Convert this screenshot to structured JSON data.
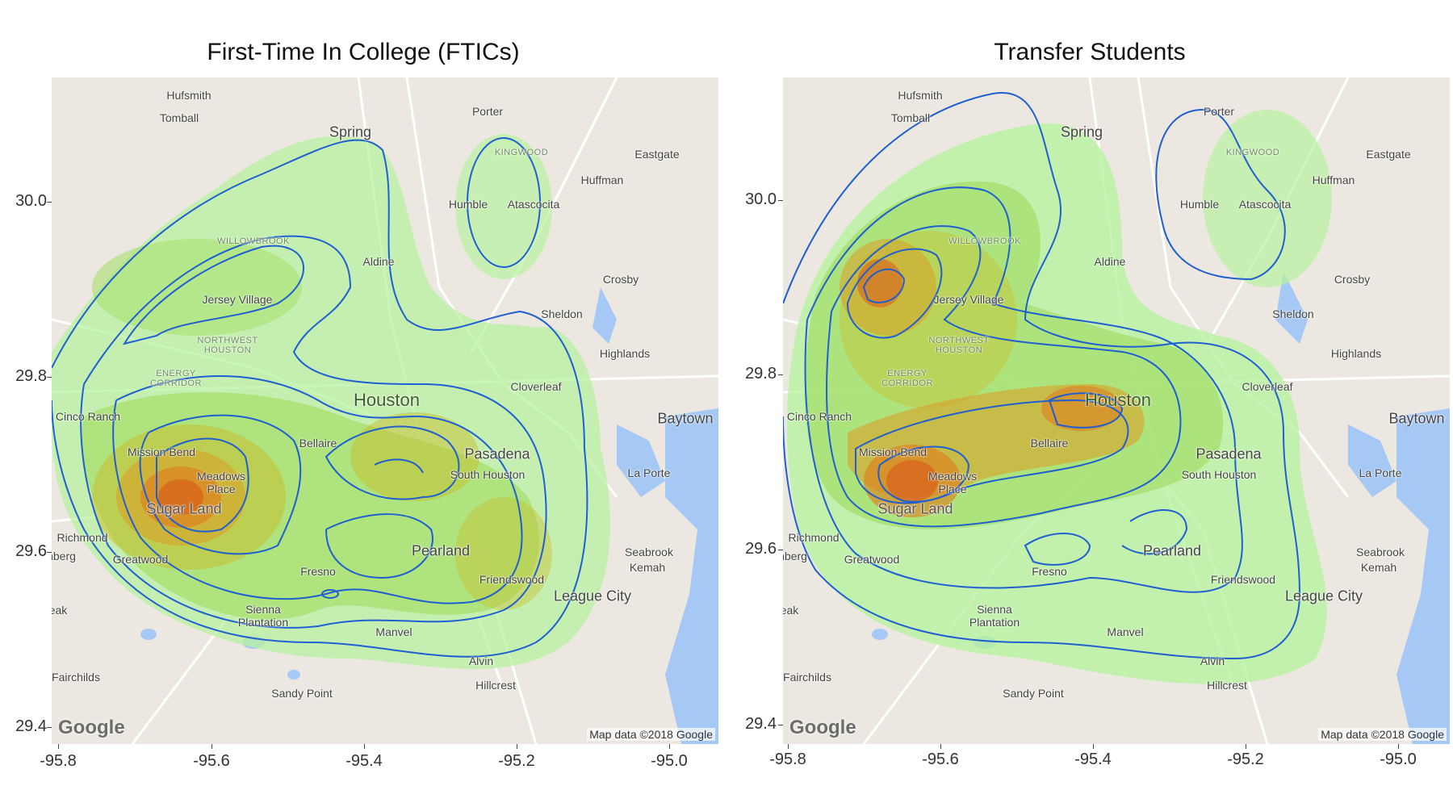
{
  "panels": [
    {
      "title": "First-Time In College (FTICs)"
    },
    {
      "title": "Transfer Students"
    }
  ],
  "axes": {
    "x_ticks": [
      "-95.8",
      "-95.6",
      "-95.4",
      "-95.2",
      "-95.0"
    ],
    "y_ticks": [
      "30.0",
      "29.8",
      "29.6",
      "29.4"
    ]
  },
  "map": {
    "google_logo": "Google",
    "attribution": "Map data ©2018 Google",
    "places": {
      "hufsmith": "Hufsmith",
      "tomball": "Tomball",
      "porter": "Porter",
      "spring": "Spring",
      "kingwood": "KINGWOOD",
      "eastgate": "Eastgate",
      "huffman": "Huffman",
      "humble": "Humble",
      "atascocita": "Atascocita",
      "willowbrook": "WILLOWBROOK",
      "aldine": "Aldine",
      "crosby": "Crosby",
      "jersey_village": "Jersey Village",
      "sheldon": "Sheldon",
      "northwest_houston": "NORTHWEST HOUSTON",
      "highlands": "Highlands",
      "energy_corridor": "ENERGY CORRIDOR",
      "cloverleaf": "Cloverleaf",
      "houston": "Houston",
      "cinco_ranch": "Cinco Ranch",
      "baytown": "Baytown",
      "bellaire": "Bellaire",
      "mission_bend": "Mission Bend",
      "pasadena": "Pasadena",
      "south_houston": "South Houston",
      "la_porte": "La Porte",
      "meadows_place": "Meadows Place",
      "sugar_land": "Sugar Land",
      "richmond": "Richmond",
      "rosenberg": "nberg",
      "pearland": "Pearland",
      "seabrook": "Seabrook",
      "kemah": "Kemah",
      "greatwood": "Greatwood",
      "fresno": "Fresno",
      "friendswood": "Friendswood",
      "league_city": "League City",
      "sienna": "Sienna Plantation",
      "manvel": "Manvel",
      "fairchilds": "Fairchilds",
      "alvin": "Alvin",
      "hillcrest": "Hillcrest",
      "sandy_point": "Sandy Point",
      "eak": "eak"
    }
  },
  "density": {
    "ftic_hotspots": [
      {
        "lon": -95.62,
        "lat": 29.68,
        "level": "high"
      },
      {
        "lon": -95.35,
        "lat": 29.72,
        "level": "medium"
      },
      {
        "lon": -95.22,
        "lat": 29.6,
        "level": "medium"
      },
      {
        "lon": -95.55,
        "lat": 29.9,
        "level": "low"
      }
    ],
    "transfer_hotspots": [
      {
        "lon": -95.63,
        "lat": 29.69,
        "level": "high"
      },
      {
        "lon": -95.38,
        "lat": 29.73,
        "level": "high"
      },
      {
        "lon": -95.68,
        "lat": 29.87,
        "level": "high"
      },
      {
        "lon": -95.55,
        "lat": 29.95,
        "level": "medium"
      }
    ]
  },
  "colors": {
    "contour": "#1f5fd0",
    "water": "#a5c8f5",
    "density_low": "#b8f2a0",
    "density_mid": "#9ad640",
    "density_high": "#e07a1a"
  }
}
